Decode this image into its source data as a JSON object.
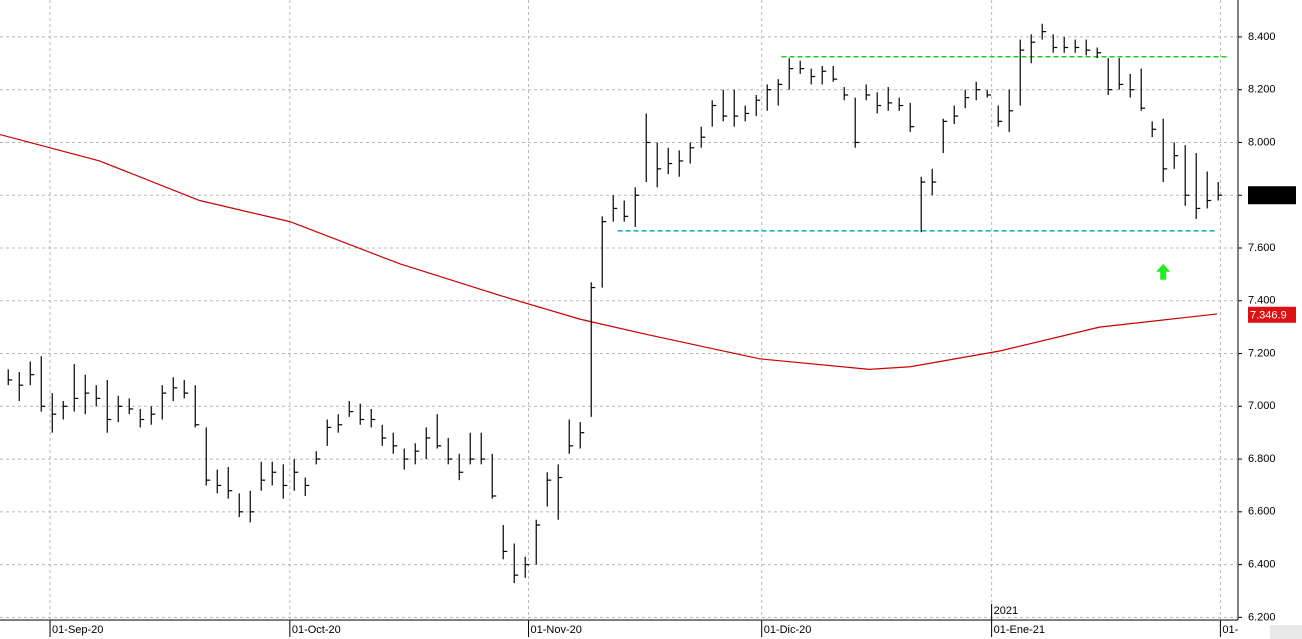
{
  "chart_data": {
    "type": "ohlc",
    "xlim": [
      -0.75,
      111.8
    ],
    "xticks": [
      {
        "value": 3.8,
        "label": "01-Sep-20"
      },
      {
        "value": 25.6,
        "label": "01-Oct-20"
      },
      {
        "value": 47.3,
        "label": "01-Nov-20"
      },
      {
        "value": 68.5,
        "label": "01-Dic-20"
      },
      {
        "value": 89.4,
        "label": "01-Ene-21"
      },
      {
        "value": 110.2,
        "label": "01-"
      }
    ],
    "year_label": "2021",
    "ylim": [
      6.19,
      8.54
    ],
    "yticks": [
      {
        "value": 6.2,
        "label": "6.200"
      },
      {
        "value": 6.4,
        "label": "6.400"
      },
      {
        "value": 6.6,
        "label": "6.600"
      },
      {
        "value": 6.8,
        "label": "6.800"
      },
      {
        "value": 7.0,
        "label": "7.000"
      },
      {
        "value": 7.2,
        "label": "7.200"
      },
      {
        "value": 7.4,
        "label": "7.400"
      },
      {
        "value": 7.6,
        "label": "7.600"
      },
      {
        "value": 7.8,
        "label": "7.800"
      },
      {
        "value": 8.0,
        "label": "8.000"
      },
      {
        "value": 8.2,
        "label": "8.200"
      },
      {
        "value": 8.4,
        "label": "8.400"
      }
    ],
    "grid": true,
    "color": "#000000",
    "high": [
      7.14,
      7.13,
      7.17,
      7.19,
      7.05,
      7.02,
      7.16,
      7.12,
      7.08,
      7.1,
      7.04,
      7.03,
      6.99,
      7.0,
      7.08,
      7.11,
      7.1,
      7.08,
      6.92,
      6.76,
      6.77,
      6.67,
      6.68,
      6.79,
      6.79,
      6.78,
      6.8,
      6.73,
      6.83,
      6.95,
      6.97,
      7.02,
      7.01,
      6.99,
      6.93,
      6.9,
      6.84,
      6.86,
      6.92,
      6.97,
      6.88,
      6.82,
      6.9,
      6.9,
      6.82,
      6.55,
      6.48,
      6.43,
      6.57,
      6.75,
      6.78,
      6.95,
      6.94,
      7.47,
      7.72,
      7.8,
      7.78,
      7.83,
      8.11,
      8.0,
      7.98,
      7.97,
      8.0,
      8.06,
      8.16,
      8.2,
      8.2,
      8.14,
      8.18,
      8.22,
      8.24,
      8.32,
      8.31,
      8.28,
      8.29,
      8.29,
      8.21,
      8.17,
      8.22,
      8.19,
      8.21,
      8.17,
      8.15,
      7.87,
      7.9,
      8.09,
      8.14,
      8.2,
      8.23,
      8.2,
      8.14,
      8.2,
      8.39,
      8.41,
      8.45,
      8.41,
      8.4,
      8.39,
      8.39,
      8.36,
      8.32,
      8.32,
      8.26,
      8.28,
      8.08,
      8.09,
      8.0,
      7.99,
      7.96,
      7.89,
      7.85
    ],
    "low": [
      7.08,
      7.02,
      7.08,
      6.98,
      6.9,
      6.95,
      6.98,
      6.97,
      7.0,
      6.9,
      6.94,
      6.97,
      6.92,
      6.93,
      6.95,
      7.02,
      7.03,
      6.92,
      6.7,
      6.67,
      6.65,
      6.58,
      6.56,
      6.68,
      6.7,
      6.65,
      6.68,
      6.66,
      6.78,
      6.85,
      6.9,
      6.96,
      6.93,
      6.92,
      6.85,
      6.82,
      6.76,
      6.78,
      6.8,
      6.84,
      6.78,
      6.72,
      6.78,
      6.78,
      6.65,
      6.42,
      6.33,
      6.35,
      6.4,
      6.62,
      6.57,
      6.82,
      6.84,
      6.96,
      7.45,
      7.7,
      7.7,
      7.68,
      7.85,
      7.83,
      7.88,
      7.87,
      7.92,
      7.98,
      8.06,
      8.08,
      8.06,
      8.08,
      8.1,
      8.12,
      8.14,
      8.2,
      8.26,
      8.22,
      8.22,
      8.23,
      8.16,
      7.98,
      8.16,
      8.11,
      8.12,
      8.12,
      8.04,
      7.66,
      7.8,
      7.96,
      8.07,
      8.13,
      8.16,
      8.17,
      8.06,
      8.04,
      8.14,
      8.3,
      8.39,
      8.34,
      8.34,
      8.34,
      8.33,
      8.32,
      8.18,
      8.2,
      8.17,
      8.12,
      8.02,
      7.85,
      7.9,
      7.76,
      7.71,
      7.75,
      7.78
    ],
    "close": [
      7.1,
      7.08,
      7.12,
      7.0,
      6.97,
      7.0,
      7.03,
      7.05,
      7.03,
      6.95,
      7.0,
      6.99,
      6.95,
      6.97,
      7.05,
      7.07,
      7.05,
      6.93,
      6.72,
      6.7,
      6.68,
      6.6,
      6.6,
      6.72,
      6.75,
      6.7,
      6.75,
      6.7,
      6.8,
      6.92,
      6.93,
      6.98,
      6.95,
      6.95,
      6.88,
      6.85,
      6.8,
      6.83,
      6.88,
      6.85,
      6.8,
      6.75,
      6.8,
      6.8,
      6.66,
      6.45,
      6.36,
      6.4,
      6.55,
      6.72,
      6.73,
      6.85,
      6.9,
      7.45,
      7.7,
      7.75,
      7.72,
      7.8,
      8.0,
      7.9,
      7.92,
      7.93,
      7.98,
      8.02,
      8.14,
      8.1,
      8.1,
      8.11,
      8.16,
      8.2,
      8.22,
      8.28,
      8.28,
      8.25,
      8.27,
      8.24,
      8.18,
      8.0,
      8.18,
      8.14,
      8.15,
      8.14,
      8.06,
      7.85,
      7.85,
      8.08,
      8.1,
      8.17,
      8.2,
      8.18,
      8.08,
      8.12,
      8.35,
      8.38,
      8.42,
      8.36,
      8.36,
      8.36,
      8.35,
      8.34,
      8.2,
      8.22,
      8.2,
      8.13,
      8.05,
      7.9,
      7.95,
      7.8,
      7.75,
      7.78,
      7.8
    ],
    "moving_average": {
      "color": "#cc0000",
      "x": [
        -0.75,
        8.3,
        17.4,
        25.6,
        35.6,
        44.7,
        52,
        58.3,
        68.3,
        78.3,
        82,
        90.2,
        99.2,
        109.9
      ],
      "values": [
        8.03,
        7.93,
        7.78,
        7.7,
        7.54,
        7.42,
        7.33,
        7.27,
        7.18,
        7.14,
        7.15,
        7.21,
        7.3,
        7.35
      ]
    },
    "ma_last": {
      "value": 7.3469,
      "label": "7.346.9"
    },
    "levels": [
      {
        "value": 8.325,
        "x": [
          70.3,
          110.9
        ],
        "color": "#22cc22"
      },
      {
        "value": 7.665,
        "x": [
          55.4,
          109.9
        ],
        "color": "#11aacc"
      }
    ],
    "arrow": {
      "x": 105,
      "y": 7.51,
      "color": "#22ee22"
    }
  }
}
